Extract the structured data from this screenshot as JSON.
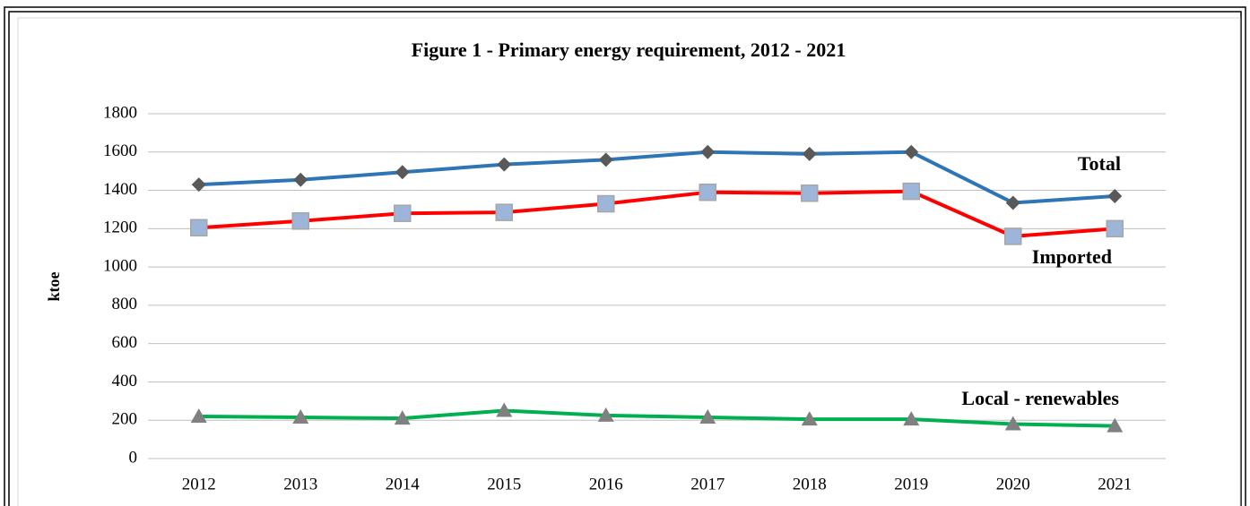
{
  "chart_data": {
    "type": "line",
    "title": "Figure 1 - Primary energy requirement, 2012 - 2021",
    "y_label": "ktoe",
    "categories": [
      "2012",
      "2013",
      "2014",
      "2015",
      "2016",
      "2017",
      "2018",
      "2019",
      "2020",
      "2021"
    ],
    "series": [
      {
        "name": "Total",
        "color": "#2e75b6",
        "marker": "diamond",
        "marker_color": "#595959",
        "values": [
          1430,
          1455,
          1495,
          1535,
          1560,
          1600,
          1590,
          1600,
          1335,
          1370
        ]
      },
      {
        "name": "Imported",
        "color": "#ff0000",
        "marker": "square",
        "marker_color": "#9db5d9",
        "values": [
          1205,
          1240,
          1280,
          1285,
          1330,
          1390,
          1385,
          1395,
          1160,
          1200
        ]
      },
      {
        "name": "Local - renewables",
        "color": "#00b050",
        "marker": "triangle",
        "marker_color": "#808080",
        "values": [
          220,
          215,
          210,
          250,
          225,
          215,
          205,
          205,
          180,
          170
        ]
      }
    ],
    "ylim": [
      0,
      1800
    ],
    "yticks": [
      0,
      200,
      400,
      600,
      800,
      1000,
      1200,
      1400,
      1600,
      1800
    ],
    "grid": true
  }
}
